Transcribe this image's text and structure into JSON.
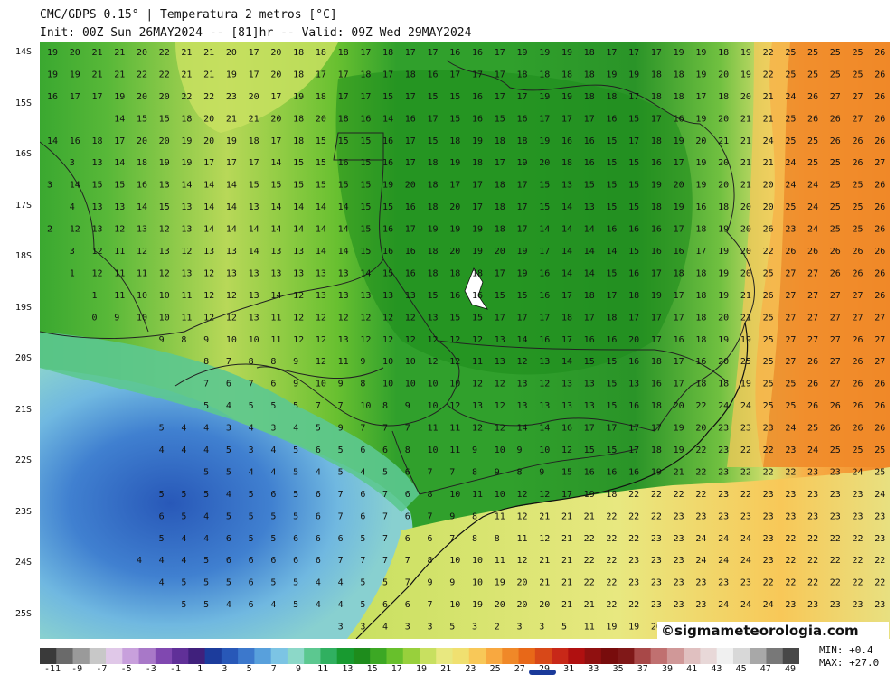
{
  "header": {
    "line1": "CMC/GDPS 0.15° | Temperatura 2 metros [°C]",
    "line2": "Init: 00Z Sun 26MAY2024 -- [81]hr -- Valid: 09Z Wed 29MAY2024"
  },
  "map": {
    "lat_labels": [
      "14S",
      "15S",
      "16S",
      "17S",
      "18S",
      "19S",
      "20S",
      "21S",
      "22S",
      "23S",
      "24S",
      "25S"
    ],
    "rows": [
      "9 19 20 21 21 20 22 21 21 20 17 20 18 18 18 17 18 17 17 16 16 17 19 19 19 18 17 17 17 19 19 18 19 22 25 25 25 25 26",
      "16 16 17 19 19 21 21 22 22 21 21 19 17 20 18 17 17 18 17 18 16 17 17 17 18 18 18 18 19 19 18 18 19 20 19 22 25 25 25 25 26",
      "15 16 17 17 19 20 20 22 22 23 20 17 19 18 17 17 15 17 15 15 16 17 17 19 19 18 18 17 18 18 17 18 20 21 24 26 27 27 26",
      "14 15 15 18 20 21 21 20 18 20 18 16 14 16 17 15 16 15 16 17 17 17 16 15 17 16 19 20 21 21 25 26 26 27 26",
      "2 14 16 18 17 20 20 19 20 19 18 17 18 15 15 15 16 17 15 18 19 18 18 19 16 16 15 17 18 19 20 21 21 24 25 25 26 26 26",
      "3 13 14 18 19 19 17 17 17 14 15 15 16 15 16 17 18 19 18 17 19 20 18 16 15 15 16 17 19 20 21 21 24 25 25 26 27",
      "3 14 15 15 16 13 14 14 14 15 15 15 15 15 15 19 20 18 17 17 18 17 15 13 15 15 15 19 20 19 20 21 20 24 24 25 25 26",
      "4 13 13 14 15 13 14 14 13 14 14 14 14 15 15 16 18 20 17 18 17 15 14 13 15 15 18 19 16 18 20 20 25 24 25 25 26",
      "2 12 13 12 13 12 13 14 14 14 14 14 14 14 15 16 17 19 19 19 18 17 14 14 14 16 16 16 17 18 19 20 26 23 24 25 25 26",
      "3 12 11 12 13 12 13 13 14 13 13 14 14 15 16 16 18 20 19 20 19 17 14 14 14 15 16 16 17 19 20 22 26 26 26 26 26",
      "1 12 11 11 12 13 12 13 13 13 13 13 13 14 15 16 18 18 18 17 19 16 14 14 15 16 17 18 18 19 20 25 27 27 26 26 26",
      "1 11 10 10 11 12 12 13 14 12 13 13 13 13 13 15 16 16 15 15 16 17 18 17 18 19 17 18 19 21 26 27 27 27 27 26",
      "0 9 10 10 11 12 12 13 11 12 12 12 12 12 12 13 15 15 17 17 17 18 17 18 17 17 17 18 20 21 25 27 27 27 27 27",
      "9 8 9 10 10 11 12 12 13 12 12 12 12 12 12 13 14 16 17 16 16 20 17 16 18 19 19 25 27 27 27 26 27",
      "8 7 8 8 9 12 11 9 10 10 12 12 11 13 12 13 14 15 15 16 18 17 16 20 25 25 27 26 27 26 27",
      "7 6 7 6 9 10 9 8 10 10 10 10 12 12 13 12 13 13 15 13 16 17 18 18 19 25 25 26 27 26 26",
      "5 4 5 5 5 7 7 10 8 9 10 12 13 12 13 13 13 13 15 16 18 20 22 24 24 25 25 26 26 26 26",
      "5 4 4 3 4 3 4 5 9 7 7 7 11 11 12 12 14 14 16 17 17 17 17 19 20 23 23 23 24 25 26 26 26",
      "4 4 4 5 3 4 5 6 5 6 6 8 10 11 9 10 9 10 12 15 15 17 18 19 22 23 22 22 23 24 25 25 25",
      "5 5 4 4 5 4 5 4 5 6 7 7 8 9 8 9 15 16 16 16 19 21 22 23 22 22 22 23 23 24 25",
      "5 5 5 4 5 6 5 6 7 6 7 6 8 10 11 10 12 12 17 19 18 22 22 22 22 23 22 23 23 23 23 23 24",
      "6 5 4 5 5 5 5 6 7 6 7 6 7 9 8 11 12 21 21 21 22 22 22 23 23 23 23 23 23 23 23 23 23",
      "5 4 4 6 5 5 6 6 6 5 7 6 6 7 8 8 11 12 21 22 22 22 23 23 24 24 24 23 22 22 22 22 23",
      "4 4 4 5 6 6 6 6 6 7 7 7 7 8 10 10 11 12 21 21 22 22 23 23 23 24 24 24 23 22 22 22 22 22",
      "4 5 5 5 6 5 5 4 4 5 5 7 9 9 10 19 20 21 21 22 22 23 23 23 23 23 23 22 22 22 22 22 22",
      "5 5 4 6 4 5 4 4 5 6 6 7 10 19 20 20 20 21 21 22 22 23 23 23 24 24 24 23 23 23 23 23",
      "3 3 4 3 3 5 3 2 3 3 5 11 19 19 20 20 20 21 21 21 22 22 22 23 23"
    ]
  },
  "watermark": {
    "symbol": "©",
    "text": "sigmameteorologia.com"
  },
  "colorbar": {
    "tick_labels": [
      "-11",
      "-9",
      "-7",
      "-5",
      "-3",
      "-1",
      "1",
      "3",
      "5",
      "7",
      "9",
      "11",
      "13",
      "15",
      "17",
      "19",
      "21",
      "23",
      "25",
      "27",
      "29",
      "31",
      "33",
      "35",
      "37",
      "39",
      "41",
      "43",
      "45",
      "47",
      "49"
    ],
    "colors": [
      "#3a3a3a",
      "#6a6a6a",
      "#9a9a9a",
      "#c8c8c8",
      "#e0c8e8",
      "#c8a0dc",
      "#a878c8",
      "#8048b0",
      "#603098",
      "#40207c",
      "#1c3c9c",
      "#2858b8",
      "#3c78cc",
      "#58a0dc",
      "#7cc4e4",
      "#8cd8c8",
      "#5cc890",
      "#30b060",
      "#189a30",
      "#1e8c1c",
      "#3ca824",
      "#68c02c",
      "#98d03c",
      "#c8e060",
      "#e8e880",
      "#f0e070",
      "#f8c858",
      "#f8a840",
      "#f08828",
      "#e86818",
      "#d84818",
      "#c82818",
      "#b01010",
      "#901010",
      "#780c0c",
      "#801818",
      "#a84848",
      "#c07070",
      "#d09898",
      "#e0c0c0",
      "#e8d8d8",
      "#f0f0f0",
      "#d8d8d8",
      "#a8a8a8",
      "#787878",
      "#484848"
    ]
  },
  "stats": {
    "min_label": "MIN:",
    "min_value": "+0.4",
    "max_label": "MAX:",
    "max_value": "+27.0"
  }
}
